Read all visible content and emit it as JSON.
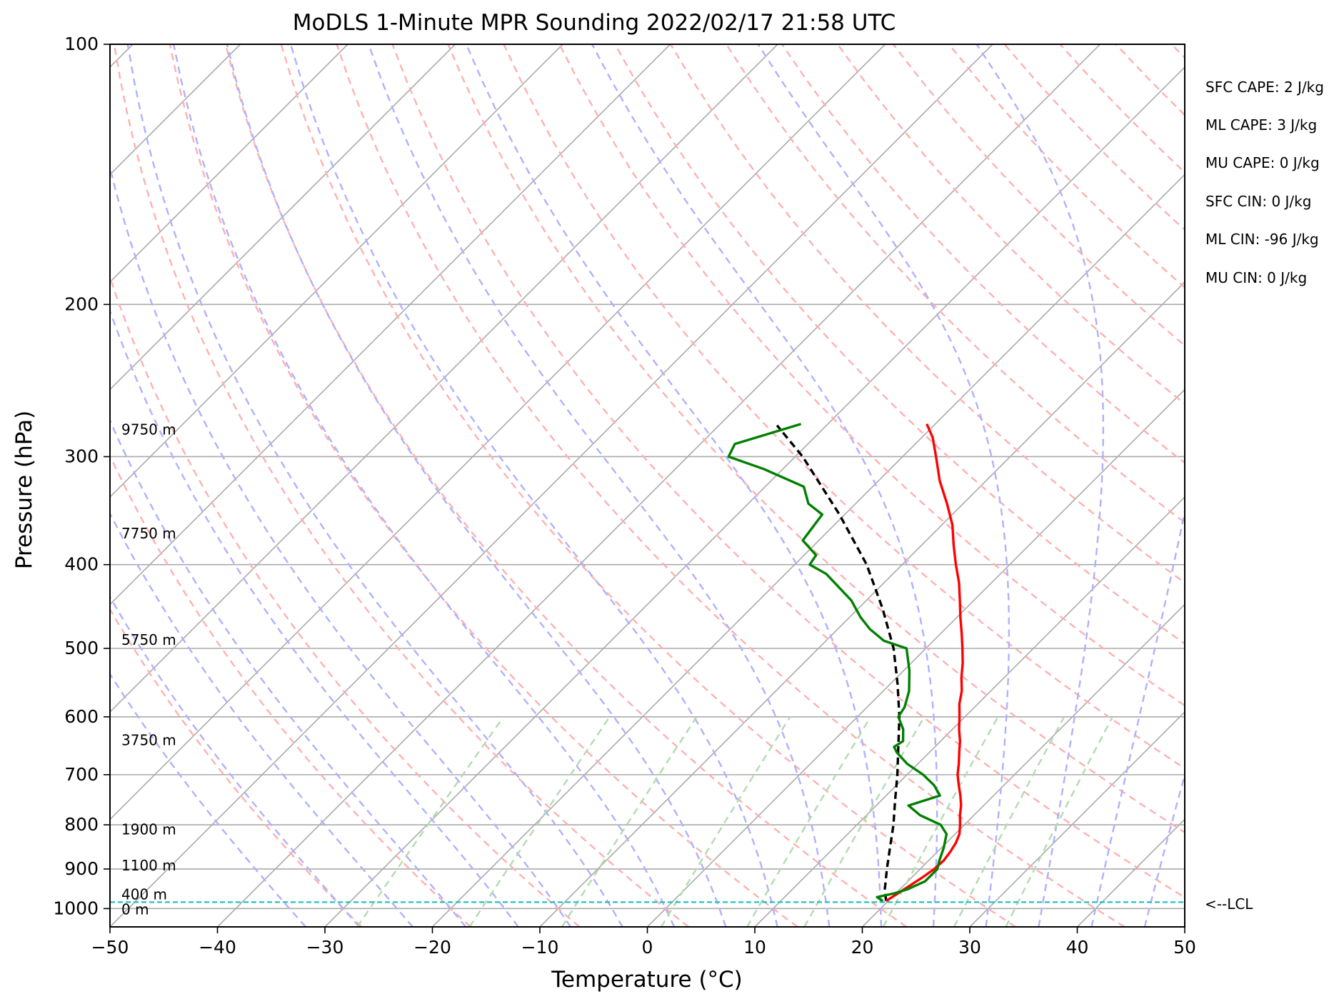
{
  "chart_data": {
    "type": "skew-t log-p sounding",
    "title": "MoDLS 1-Minute MPR Sounding 2022/02/17 21:58 UTC",
    "xlabel": "Temperature (°C)",
    "ylabel": "Pressure (hPa)",
    "xlim": [
      -50,
      50
    ],
    "ylim": [
      1050,
      100
    ],
    "y_scale": "log",
    "grid": true,
    "x_ticks": [
      "−50",
      "−40",
      "−30",
      "−20",
      "−10",
      "0",
      "10",
      "20",
      "30",
      "40",
      "50"
    ],
    "x_tick_values": [
      -50,
      -40,
      -30,
      -20,
      -10,
      0,
      10,
      20,
      30,
      40,
      50
    ],
    "y_ticks": [
      "100",
      "200",
      "300",
      "400",
      "500",
      "600",
      "700",
      "800",
      "900",
      "1000"
    ],
    "y_tick_values": [
      100,
      200,
      300,
      400,
      500,
      600,
      700,
      800,
      900,
      1000
    ],
    "height_labels": [
      {
        "text": "9750 m",
        "p": 280
      },
      {
        "text": "7750 m",
        "p": 369
      },
      {
        "text": "5750 m",
        "p": 490
      },
      {
        "text": "3750 m",
        "p": 640
      },
      {
        "text": "1900 m",
        "p": 812
      },
      {
        "text": "1100 m",
        "p": 894
      },
      {
        "text": "400 m",
        "p": 966
      },
      {
        "text": "0 m",
        "p": 1005
      }
    ],
    "temperature": {
      "color": "#ff0000",
      "points": [
        [
          980,
          19.8
        ],
        [
          960,
          20.2
        ],
        [
          940,
          20.6
        ],
        [
          920,
          21.0
        ],
        [
          900,
          21.3
        ],
        [
          880,
          21.4
        ],
        [
          860,
          21.2
        ],
        [
          840,
          20.9
        ],
        [
          820,
          20.4
        ],
        [
          800,
          19.6
        ],
        [
          780,
          18.7
        ],
        [
          760,
          17.9
        ],
        [
          740,
          16.9
        ],
        [
          720,
          15.8
        ],
        [
          700,
          14.7
        ],
        [
          680,
          13.8
        ],
        [
          660,
          12.8
        ],
        [
          640,
          11.8
        ],
        [
          620,
          10.6
        ],
        [
          600,
          9.5
        ],
        [
          580,
          8.3
        ],
        [
          560,
          7.3
        ],
        [
          540,
          6.0
        ],
        [
          520,
          4.8
        ],
        [
          500,
          3.4
        ],
        [
          480,
          1.9
        ],
        [
          460,
          0.3
        ],
        [
          440,
          -1.3
        ],
        [
          420,
          -3.0
        ],
        [
          400,
          -5.0
        ],
        [
          380,
          -7.0
        ],
        [
          360,
          -9.0
        ],
        [
          340,
          -11.5
        ],
        [
          320,
          -14.3
        ],
        [
          300,
          -16.9
        ],
        [
          285,
          -19.0
        ],
        [
          275,
          -20.8
        ]
      ]
    },
    "dewpoint": {
      "color": "#008000",
      "points": [
        [
          980,
          19.5
        ],
        [
          970,
          18.6
        ],
        [
          960,
          19.9
        ],
        [
          950,
          20.7
        ],
        [
          930,
          21.6
        ],
        [
          900,
          21.6
        ],
        [
          880,
          21.0
        ],
        [
          850,
          20.2
        ],
        [
          820,
          19.2
        ],
        [
          800,
          17.8
        ],
        [
          780,
          15.0
        ],
        [
          760,
          13.0
        ],
        [
          740,
          15.0
        ],
        [
          720,
          13.5
        ],
        [
          700,
          11.5
        ],
        [
          680,
          9.0
        ],
        [
          660,
          7.0
        ],
        [
          650,
          6.2
        ],
        [
          640,
          6.5
        ],
        [
          620,
          5.4
        ],
        [
          600,
          3.8
        ],
        [
          585,
          3.5
        ],
        [
          560,
          2.4
        ],
        [
          530,
          0.5
        ],
        [
          500,
          -1.8
        ],
        [
          490,
          -4.6
        ],
        [
          475,
          -7.0
        ],
        [
          460,
          -9.0
        ],
        [
          440,
          -11.4
        ],
        [
          410,
          -16.2
        ],
        [
          400,
          -18.6
        ],
        [
          390,
          -18.9
        ],
        [
          375,
          -21.5
        ],
        [
          350,
          -22.1
        ],
        [
          340,
          -24.4
        ],
        [
          325,
          -26.4
        ],
        [
          310,
          -31.8
        ],
        [
          300,
          -36.2
        ],
        [
          290,
          -36.8
        ],
        [
          275,
          -32.5
        ]
      ]
    },
    "parcel_profile": {
      "color": "#000000",
      "points": [
        [
          980,
          19.8
        ],
        [
          950,
          18.6
        ],
        [
          900,
          16.9
        ],
        [
          850,
          15.2
        ],
        [
          800,
          13.4
        ],
        [
          750,
          11.3
        ],
        [
          700,
          9.1
        ],
        [
          650,
          6.6
        ],
        [
          600,
          3.9
        ],
        [
          550,
          0.7
        ],
        [
          500,
          -3.0
        ],
        [
          450,
          -7.7
        ],
        [
          400,
          -13.3
        ],
        [
          350,
          -20.5
        ],
        [
          300,
          -29.3
        ],
        [
          276,
          -34.6
        ]
      ]
    },
    "lcl": {
      "p": 983,
      "label": "<--LCL",
      "color": "#20c0c0"
    },
    "stats": [
      "SFC CAPE: 2 J/kg",
      "ML CAPE: 3 J/kg",
      "MU CAPE: 0 J/kg",
      "SFC CIN: 0 J/kg",
      "ML CIN: -96 J/kg",
      "MU CIN: 0 J/kg"
    ],
    "background_lines": {
      "isotherms_color": "#aaaaaa",
      "dry_adiabats_color": "#ffb0b0",
      "moist_adiabats_color": "#b0b0ff",
      "mixing_ratio_color": "#b0dcb0"
    }
  }
}
